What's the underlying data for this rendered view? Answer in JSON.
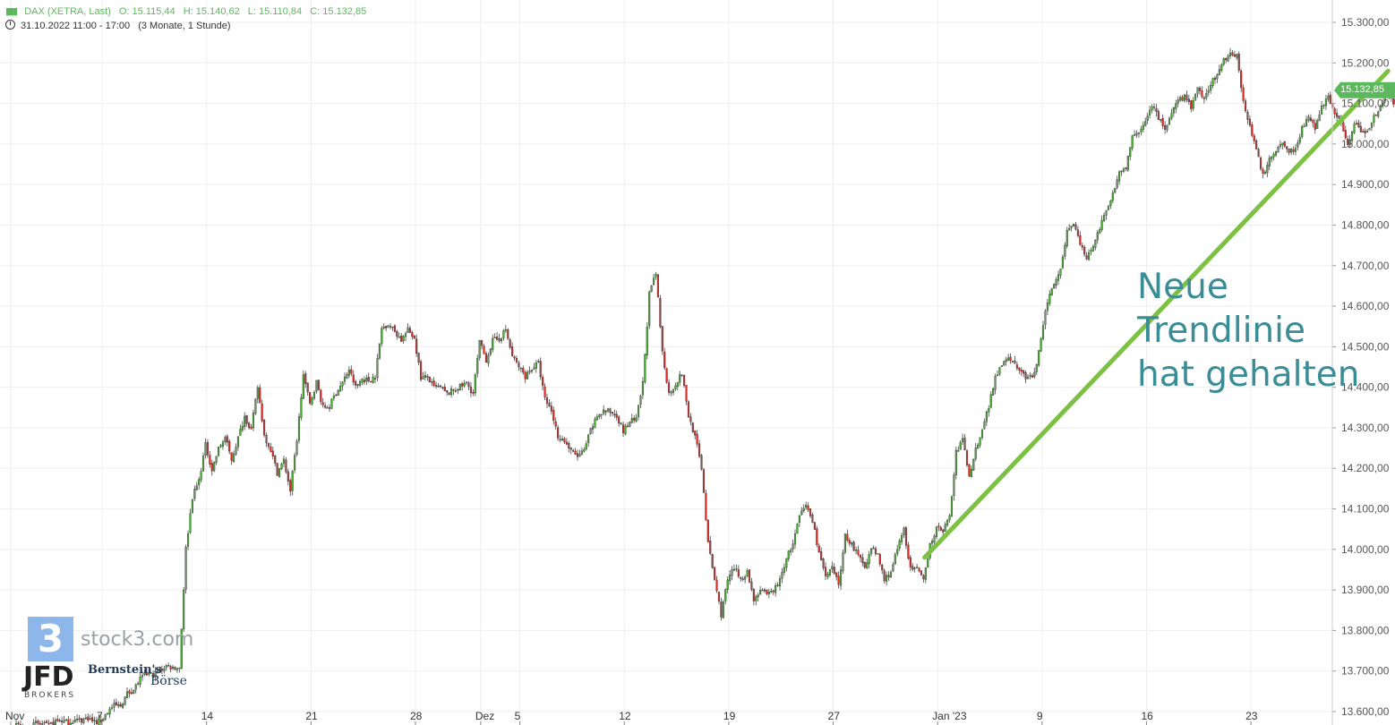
{
  "header": {
    "instrument": "DAX (XETRA, Last)",
    "open": "O: 15.115,44",
    "high": "H: 15.140,62",
    "low": "L: 15.110,84",
    "close": "C: 15.132,85",
    "timeframe": "31.10.2022 11:00 - 17:00",
    "period": "(3 Monate, 1 Stunde)"
  },
  "annotation": {
    "line1": "Neue",
    "line2": "Trendlinie",
    "line3": "hat gehalten"
  },
  "last_price_label": "15.132,85",
  "logos": {
    "stock3_mark": "3",
    "stock3_text": "stock3.com",
    "jfd_text": "JFD",
    "jfd_sub": "BROKERS",
    "bernstein_text": "Bernstein's",
    "boerse_text": "Börse"
  },
  "colors": {
    "up": "#4caf37",
    "down": "#d9302c",
    "trendline": "#7cc142",
    "grid": "#eeeeee",
    "axis_text": "#555555",
    "annotation": "#3a8d95",
    "price_tag": "#5cb85c"
  },
  "chart_data": {
    "type": "candlestick",
    "y_axis": {
      "side": "right",
      "min": 13600,
      "max": 15300,
      "tick_labels": [
        "15.300,00",
        "15.200,00",
        "15.100,00",
        "15.000,00",
        "14.900,00",
        "14.800,00",
        "14.700,00",
        "14.600,00",
        "14.500,00",
        "14.400,00",
        "14.300,00",
        "14.200,00",
        "14.100,00",
        "14.000,00",
        "13.900,00",
        "13.800,00",
        "13.700,00",
        "13.600,00"
      ],
      "tick_values": [
        15300,
        15200,
        15100,
        15000,
        14900,
        14800,
        14700,
        14600,
        14500,
        14400,
        14300,
        14200,
        14100,
        14000,
        13900,
        13800,
        13700,
        13600
      ]
    },
    "x_axis": {
      "tick_labels": [
        "Nov",
        "7",
        "14",
        "21",
        "28",
        "Dez",
        "5",
        "12",
        "19",
        "27",
        "Jan '23",
        "9",
        "16",
        "23"
      ],
      "tick_index": [
        0,
        14,
        30,
        46,
        62,
        72,
        78,
        94,
        110,
        126,
        142,
        158,
        174,
        190
      ],
      "total_slots": 200
    },
    "price_path": [
      [
        0,
        13560
      ],
      [
        14,
        13580
      ],
      [
        18,
        13640
      ],
      [
        22,
        13700
      ],
      [
        26,
        13705
      ],
      [
        27,
        14000
      ],
      [
        28,
        14120
      ],
      [
        29,
        14160
      ],
      [
        30,
        14260
      ],
      [
        31,
        14200
      ],
      [
        33,
        14280
      ],
      [
        34,
        14230
      ],
      [
        36,
        14330
      ],
      [
        37,
        14300
      ],
      [
        38,
        14390
      ],
      [
        39,
        14280
      ],
      [
        40,
        14240
      ],
      [
        41,
        14180
      ],
      [
        42,
        14230
      ],
      [
        43,
        14150
      ],
      [
        44,
        14270
      ],
      [
        45,
        14430
      ],
      [
        46,
        14360
      ],
      [
        47,
        14420
      ],
      [
        48,
        14340
      ],
      [
        50,
        14390
      ],
      [
        52,
        14440
      ],
      [
        53,
        14390
      ],
      [
        54,
        14420
      ],
      [
        56,
        14430
      ],
      [
        57,
        14550
      ],
      [
        58,
        14560
      ],
      [
        60,
        14520
      ],
      [
        61,
        14540
      ],
      [
        62,
        14520
      ],
      [
        63,
        14430
      ],
      [
        65,
        14400
      ],
      [
        67,
        14380
      ],
      [
        70,
        14410
      ],
      [
        71,
        14380
      ],
      [
        72,
        14500
      ],
      [
        73,
        14470
      ],
      [
        74,
        14510
      ],
      [
        76,
        14540
      ],
      [
        77,
        14480
      ],
      [
        79,
        14430
      ],
      [
        81,
        14450
      ],
      [
        82,
        14380
      ],
      [
        84,
        14290
      ],
      [
        86,
        14250
      ],
      [
        88,
        14230
      ],
      [
        89,
        14300
      ],
      [
        91,
        14350
      ],
      [
        93,
        14330
      ],
      [
        94,
        14300
      ],
      [
        96,
        14310
      ],
      [
        97,
        14400
      ],
      [
        98,
        14620
      ],
      [
        99,
        14670
      ],
      [
        100,
        14480
      ],
      [
        101,
        14390
      ],
      [
        102,
        14420
      ],
      [
        103,
        14440
      ],
      [
        104,
        14340
      ],
      [
        105,
        14290
      ],
      [
        106,
        14200
      ],
      [
        107,
        14020
      ],
      [
        108,
        13920
      ],
      [
        109,
        13840
      ],
      [
        110,
        13920
      ],
      [
        111,
        13960
      ],
      [
        112,
        13920
      ],
      [
        113,
        13950
      ],
      [
        114,
        13880
      ],
      [
        115,
        13890
      ],
      [
        117,
        13900
      ],
      [
        119,
        13970
      ],
      [
        120,
        14010
      ],
      [
        121,
        14070
      ],
      [
        122,
        14120
      ],
      [
        123,
        14060
      ],
      [
        124,
        14000
      ],
      [
        125,
        13920
      ],
      [
        126,
        13950
      ],
      [
        127,
        13910
      ],
      [
        128,
        14040
      ],
      [
        129,
        14020
      ],
      [
        130,
        13990
      ],
      [
        131,
        13960
      ],
      [
        132,
        14010
      ],
      [
        133,
        13980
      ],
      [
        134,
        13920
      ],
      [
        135,
        13940
      ],
      [
        136,
        14000
      ],
      [
        137,
        14060
      ],
      [
        138,
        13960
      ],
      [
        139,
        13940
      ],
      [
        140,
        13930
      ],
      [
        141,
        14010
      ],
      [
        142,
        14040
      ],
      [
        143,
        14060
      ],
      [
        144,
        14070
      ],
      [
        145,
        14230
      ],
      [
        146,
        14260
      ],
      [
        147,
        14170
      ],
      [
        148,
        14240
      ],
      [
        149,
        14300
      ],
      [
        150,
        14360
      ],
      [
        151,
        14420
      ],
      [
        152,
        14450
      ],
      [
        153,
        14480
      ],
      [
        154,
        14460
      ],
      [
        155,
        14440
      ],
      [
        156,
        14410
      ],
      [
        157,
        14430
      ],
      [
        158,
        14520
      ],
      [
        159,
        14610
      ],
      [
        160,
        14650
      ],
      [
        161,
        14700
      ],
      [
        162,
        14780
      ],
      [
        163,
        14810
      ],
      [
        164,
        14760
      ],
      [
        165,
        14720
      ],
      [
        166,
        14740
      ],
      [
        167,
        14780
      ],
      [
        168,
        14830
      ],
      [
        169,
        14870
      ],
      [
        170,
        14920
      ],
      [
        171,
        14950
      ],
      [
        172,
        15010
      ],
      [
        173,
        15040
      ],
      [
        174,
        15060
      ],
      [
        175,
        15090
      ],
      [
        176,
        15060
      ],
      [
        177,
        15020
      ],
      [
        178,
        15080
      ],
      [
        179,
        15110
      ],
      [
        180,
        15120
      ],
      [
        181,
        15100
      ],
      [
        182,
        15130
      ],
      [
        183,
        15110
      ],
      [
        184,
        15150
      ],
      [
        185,
        15170
      ],
      [
        186,
        15200
      ],
      [
        187,
        15230
      ],
      [
        188,
        15210
      ],
      [
        189,
        15120
      ],
      [
        190,
        15050
      ],
      [
        191,
        14980
      ],
      [
        192,
        14930
      ],
      [
        193,
        14960
      ],
      [
        194,
        14990
      ],
      [
        195,
        15010
      ],
      [
        196,
        14980
      ],
      [
        197,
        14990
      ],
      [
        198,
        15050
      ],
      [
        199,
        15060
      ],
      [
        200,
        15030
      ],
      [
        201,
        15080
      ],
      [
        202,
        15110
      ],
      [
        203,
        15070
      ],
      [
        204,
        15040
      ],
      [
        205,
        15010
      ],
      [
        206,
        15050
      ],
      [
        207,
        15030
      ],
      [
        208,
        15020
      ],
      [
        209,
        15060
      ],
      [
        210,
        15100
      ],
      [
        211,
        15140
      ],
      [
        212,
        15110
      ],
      [
        213,
        15132
      ]
    ],
    "trendline": {
      "from": [
        140,
        13980
      ],
      "to": [
        211,
        15180
      ]
    },
    "last_price": 15132.85,
    "grid": true,
    "legend": "none"
  }
}
